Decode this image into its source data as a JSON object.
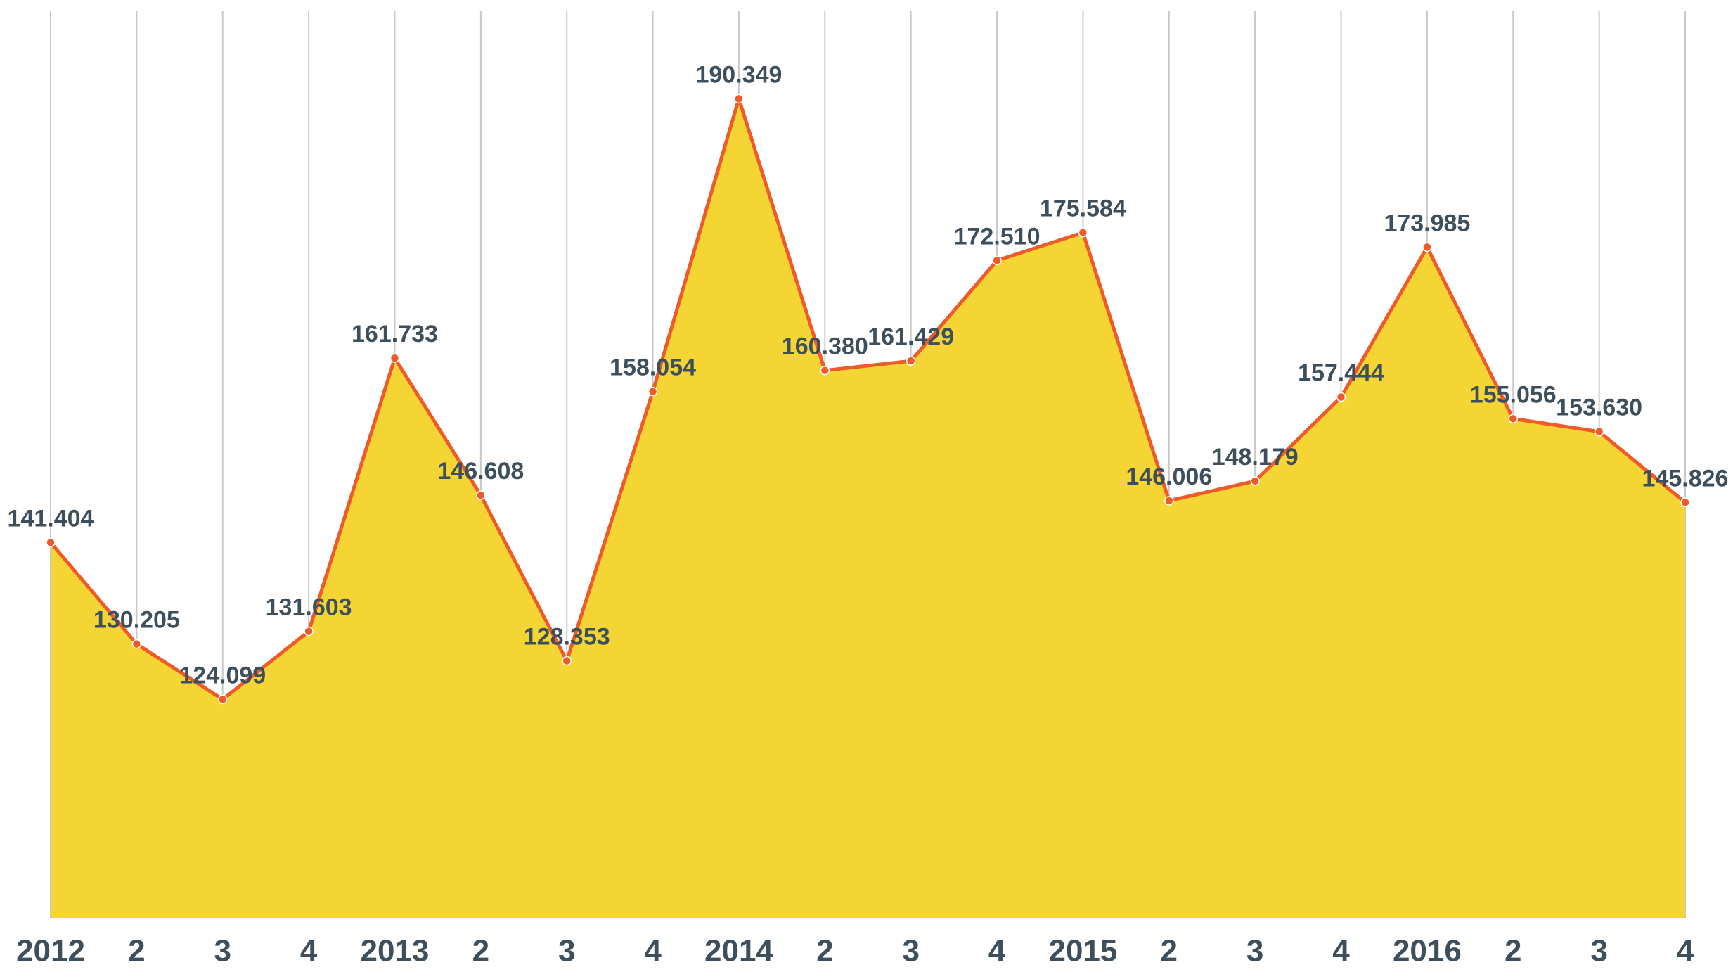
{
  "chart_data": {
    "type": "area",
    "categories": [
      "2012",
      "2",
      "3",
      "4",
      "2013",
      "2",
      "3",
      "4",
      "2014",
      "2",
      "3",
      "4",
      "2015",
      "2",
      "3",
      "4",
      "2016",
      "2",
      "3",
      "4"
    ],
    "values": [
      141.404,
      130.205,
      124.099,
      131.603,
      161.733,
      146.608,
      128.353,
      158.054,
      190.349,
      160.38,
      161.429,
      172.51,
      175.584,
      146.006,
      148.179,
      157.444,
      173.985,
      155.056,
      153.63,
      145.826
    ],
    "value_labels": [
      "141.404",
      "130.205",
      "124.099",
      "131.603",
      "161.733",
      "146.608",
      "128.353",
      "158.054",
      "190.349",
      "160.380",
      "161.429",
      "172.510",
      "175.584",
      "146.006",
      "148.179",
      "157.444",
      "173.985",
      "155.056",
      "153.630",
      "145.826"
    ],
    "color": "#f4d534",
    "line_color": "#f05a28",
    "ylim": [
      100,
      200
    ],
    "grid": true
  }
}
